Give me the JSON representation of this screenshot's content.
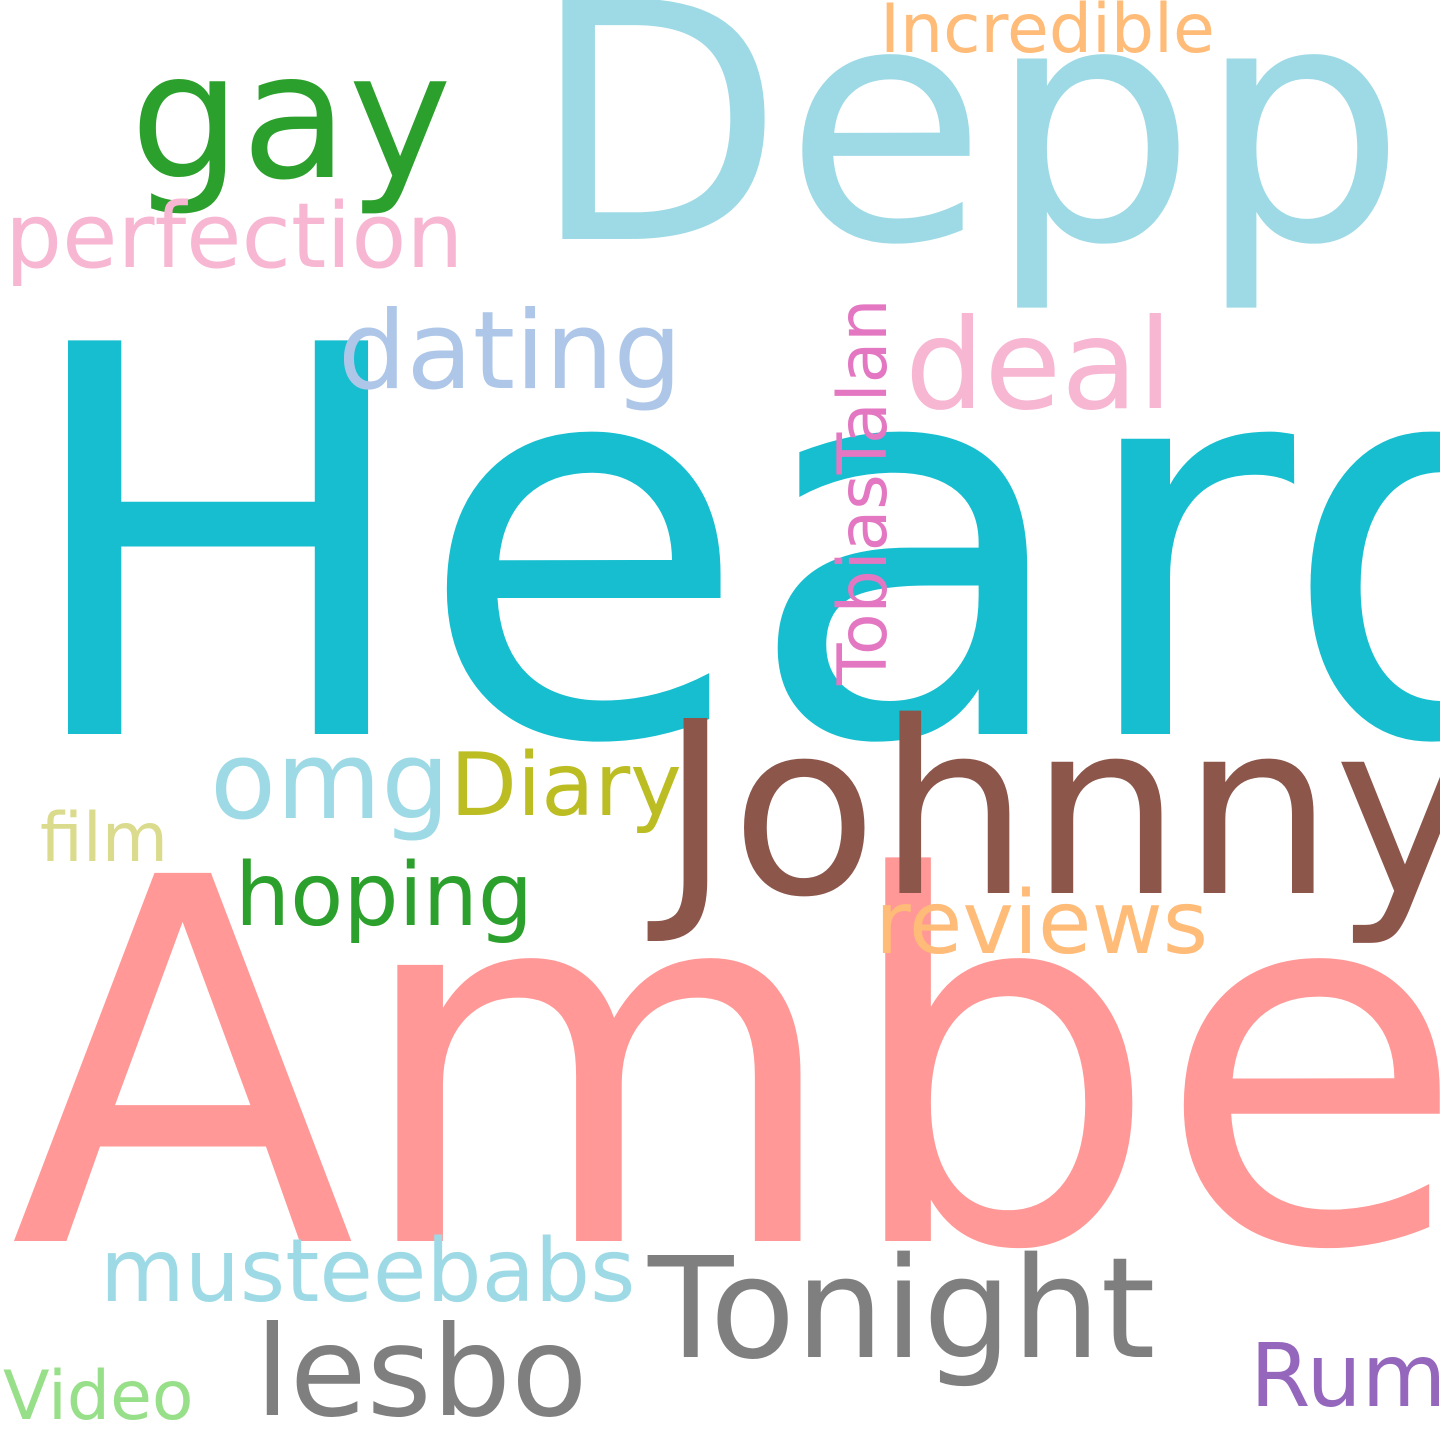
{
  "cloud": {
    "background": "#ffffff",
    "words": {
      "heard": {
        "text": "Heard",
        "color": "#17becf"
      },
      "amber": {
        "text": "Amber",
        "color": "#ff9896"
      },
      "depp": {
        "text": "Depp",
        "color": "#9edae5"
      },
      "johnny": {
        "text": "Johnny",
        "color": "#8c564b"
      },
      "gay": {
        "text": "gay",
        "color": "#2ca02c"
      },
      "tonight": {
        "text": "Tonight",
        "color": "#7f7f7f"
      },
      "lesbo": {
        "text": "lesbo",
        "color": "#7f7f7f"
      },
      "deal": {
        "text": "deal",
        "color": "#f7b6d2"
      },
      "dating": {
        "text": "dating",
        "color": "#aec7e8"
      },
      "perfection": {
        "text": "perfection",
        "color": "#f7b6d2"
      },
      "omg": {
        "text": "omg",
        "color": "#9edae5"
      },
      "musteebabs": {
        "text": "musteebabs",
        "color": "#9edae5"
      },
      "hoping": {
        "text": "hoping",
        "color": "#2ca02c"
      },
      "diary": {
        "text": "Diary",
        "color": "#bcbd22"
      },
      "reviews": {
        "text": "reviews",
        "color": "#ffbb78"
      },
      "rum": {
        "text": "Rum",
        "color": "#9467bd"
      },
      "incredible": {
        "text": "Incredible",
        "color": "#ffbb78"
      },
      "film": {
        "text": "film",
        "color": "#dbdb8d"
      },
      "video": {
        "text": "Video",
        "color": "#98df8a"
      },
      "tobiastalan": {
        "text": "TobiasTalan",
        "color": "#e377c2"
      }
    }
  }
}
